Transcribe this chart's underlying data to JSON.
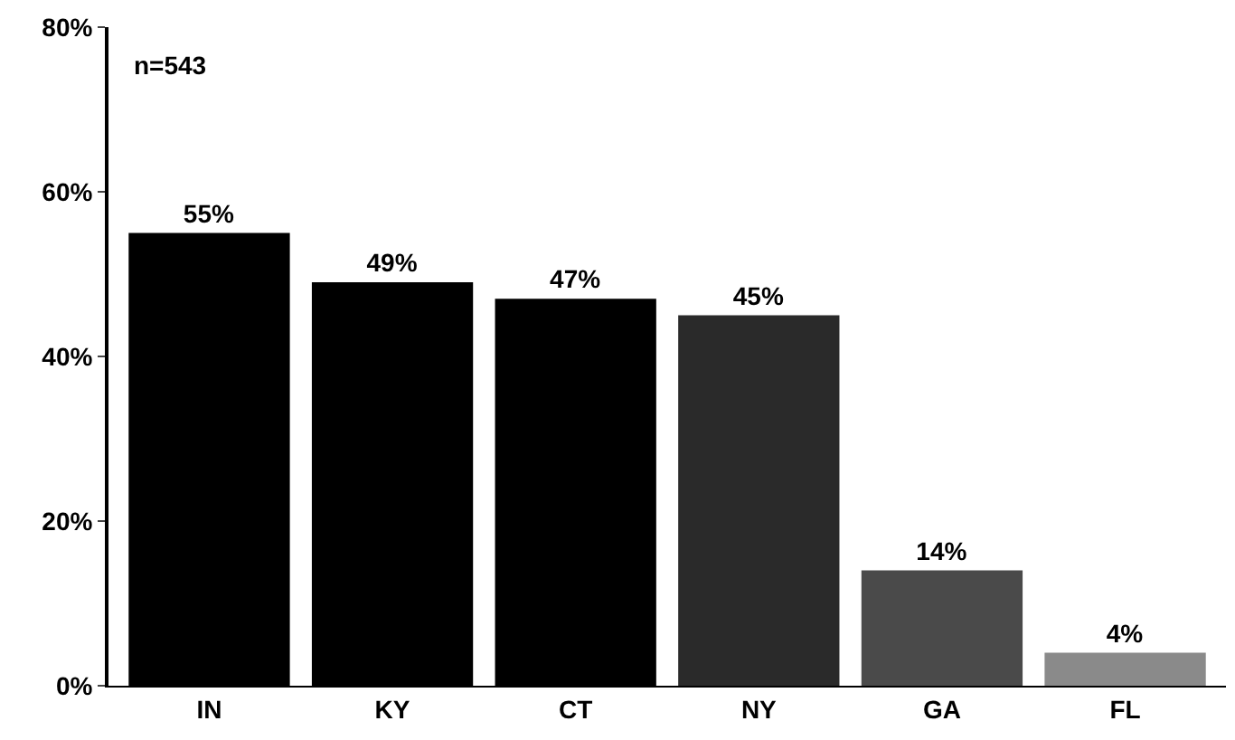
{
  "chart_data": {
    "type": "bar",
    "categories": [
      "IN",
      "KY",
      "CT",
      "NY",
      "GA",
      "FL"
    ],
    "values": [
      55,
      49,
      47,
      45,
      14,
      4
    ],
    "colors": [
      "#000000",
      "#000000",
      "#000000",
      "#2a2a2a",
      "#4a4a4a",
      "#8a8a8a"
    ],
    "value_labels": [
      "55%",
      "49%",
      "47%",
      "45%",
      "14%",
      "4%"
    ],
    "ylim": [
      0,
      80
    ],
    "yticks": [
      {
        "value": 0,
        "label": "0%"
      },
      {
        "value": 20,
        "label": "20%"
      },
      {
        "value": 40,
        "label": "40%"
      },
      {
        "value": 60,
        "label": "60%"
      },
      {
        "value": 80,
        "label": "80%"
      }
    ],
    "annotations": [
      "n=543"
    ],
    "legend": false
  }
}
